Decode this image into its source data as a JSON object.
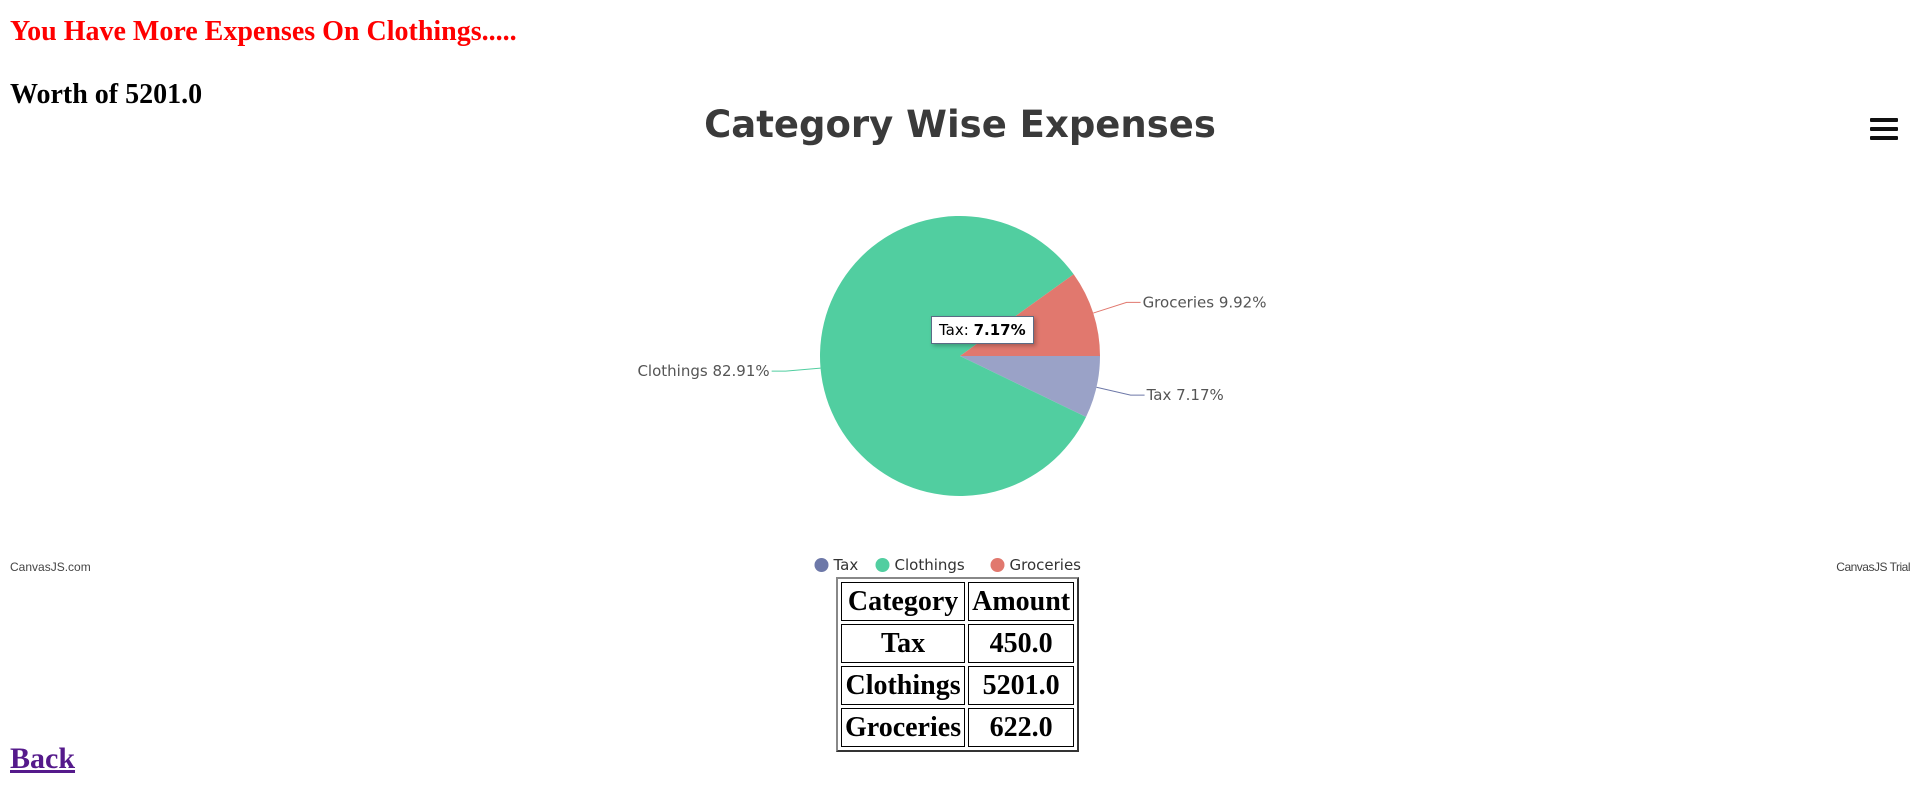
{
  "page": {
    "headline": "You Have More Expenses On Clothings.....",
    "worth": "Worth of 5201.0",
    "back_label": "Back"
  },
  "chart_data": {
    "type": "pie",
    "title": "Category Wise Expenses",
    "slices": [
      {
        "label": "Tax",
        "percent": 7.17,
        "color": "#9aa2c7",
        "line_color": "#6d78a8",
        "legend_color": "#6d78a8"
      },
      {
        "label": "Clothings",
        "percent": 82.91,
        "color": "#51cea0",
        "line_color": "#51cea0",
        "legend_color": "#51cea0"
      },
      {
        "label": "Groceries",
        "percent": 9.92,
        "color": "#e1786e",
        "line_color": "#e1786e",
        "legend_color": "#e1786e"
      }
    ],
    "tooltip": {
      "label": "Tax:",
      "value": "7.17%"
    },
    "legend_position": "bottom"
  },
  "credits": {
    "left": "CanvasJS.com",
    "right": "CanvasJS Trial"
  },
  "table": {
    "headers": [
      "Category",
      "Amount"
    ],
    "rows": [
      [
        "Tax",
        "450.0"
      ],
      [
        "Clothings",
        "5201.0"
      ],
      [
        "Groceries",
        "622.0"
      ]
    ]
  }
}
